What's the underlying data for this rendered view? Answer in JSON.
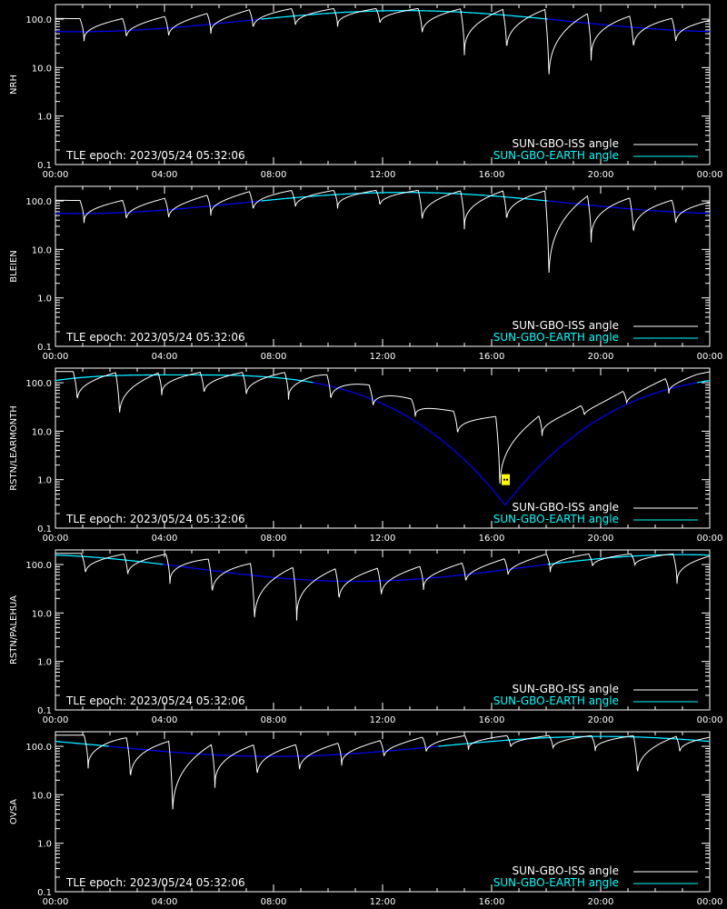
{
  "colors": {
    "background": "#000000",
    "axes": "#ffffff",
    "iss_curve": "#ffffff",
    "earth_curve_low": "#0000ff",
    "earth_curve_high": "#00ffff",
    "marker": "#ffff00"
  },
  "chart_data": [
    {
      "type": "line",
      "ylabel": "NRH",
      "xticks": [
        "00:00",
        "04:00",
        "08:00",
        "12:00",
        "16:00",
        "20:00",
        "00:00"
      ],
      "yticks": [
        "0.1",
        "1.0",
        "10.0",
        "100.0"
      ],
      "x_range_hours": [
        0,
        24
      ],
      "ylim": [
        0.1,
        200
      ],
      "yscale": "log",
      "annotation": "TLE epoch: 2023/05/24 05:32:06",
      "legend": [
        "SUN-GBO-ISS angle",
        "SUN-GBO-EARTH angle"
      ],
      "earth": {
        "mid_hour": 12.8,
        "max_angle": 150,
        "min_angle": 55
      },
      "iss_dips": [
        {
          "hour": 1.05,
          "angle": 35
        },
        {
          "hour": 2.6,
          "angle": 38
        },
        {
          "hour": 4.15,
          "angle": 40
        },
        {
          "hour": 5.7,
          "angle": 50
        },
        {
          "hour": 7.25,
          "angle": 60
        },
        {
          "hour": 8.8,
          "angle": 68
        },
        {
          "hour": 10.35,
          "angle": 70
        },
        {
          "hour": 11.9,
          "angle": 75
        },
        {
          "hour": 13.45,
          "angle": 45
        },
        {
          "hour": 15.0,
          "angle": 18
        },
        {
          "hour": 16.55,
          "angle": 20
        },
        {
          "hour": 18.1,
          "angle": 4.5
        },
        {
          "hour": 19.65,
          "angle": 14
        },
        {
          "hour": 21.2,
          "angle": 22
        },
        {
          "hour": 22.75,
          "angle": 30
        }
      ]
    },
    {
      "type": "line",
      "ylabel": "BLEIEN",
      "xticks": [
        "00:00",
        "04:00",
        "08:00",
        "12:00",
        "16:00",
        "20:00",
        "00:00"
      ],
      "yticks": [
        "0.1",
        "1.0",
        "10.0",
        "100.0"
      ],
      "x_range_hours": [
        0,
        24
      ],
      "ylim": [
        0.1,
        200
      ],
      "yscale": "log",
      "annotation": "TLE epoch: 2023/05/24 05:32:06",
      "legend": [
        "SUN-GBO-ISS angle",
        "SUN-GBO-EARTH angle"
      ],
      "earth": {
        "mid_hour": 12.8,
        "max_angle": 150,
        "min_angle": 55
      },
      "iss_dips": [
        {
          "hour": 1.05,
          "angle": 35
        },
        {
          "hour": 2.6,
          "angle": 38
        },
        {
          "hour": 4.15,
          "angle": 40
        },
        {
          "hour": 5.7,
          "angle": 50
        },
        {
          "hour": 7.25,
          "angle": 60
        },
        {
          "hour": 8.8,
          "angle": 68
        },
        {
          "hour": 10.35,
          "angle": 70
        },
        {
          "hour": 11.9,
          "angle": 75
        },
        {
          "hour": 13.45,
          "angle": 35
        },
        {
          "hour": 15.0,
          "angle": 26
        },
        {
          "hour": 16.55,
          "angle": 35
        },
        {
          "hour": 18.1,
          "angle": 1.8
        },
        {
          "hour": 19.65,
          "angle": 14
        },
        {
          "hour": 21.2,
          "angle": 18
        },
        {
          "hour": 22.75,
          "angle": 30
        }
      ]
    },
    {
      "type": "line",
      "ylabel": "RSTN/LEARMONTH",
      "xticks": [
        "00:00",
        "04:00",
        "08:00",
        "12:00",
        "16:00",
        "20:00",
        "00:00"
      ],
      "yticks": [
        "0.1",
        "1.0",
        "10.0",
        "100.0"
      ],
      "x_range_hours": [
        0,
        24
      ],
      "ylim": [
        0.1,
        200
      ],
      "yscale": "log",
      "annotation": "TLE epoch: 2023/05/24 05:32:06",
      "legend": [
        "SUN-GBO-ISS angle",
        "SUN-GBO-EARTH angle"
      ],
      "earth": {
        "mid_hour": 4.5,
        "max_angle": 145,
        "min_angle": 0.3,
        "min_hour": 16.5
      },
      "marker": {
        "hour": 16.5,
        "angle": 1.0
      },
      "iss_dips": [
        {
          "hour": 0.8,
          "angle": 38
        },
        {
          "hour": 2.35,
          "angle": 18
        },
        {
          "hour": 3.9,
          "angle": 55
        },
        {
          "hour": 5.45,
          "angle": 55
        },
        {
          "hour": 7.0,
          "angle": 50
        },
        {
          "hour": 8.55,
          "angle": 45
        },
        {
          "hour": 10.1,
          "angle": 40
        },
        {
          "hour": 11.65,
          "angle": 30
        },
        {
          "hour": 13.2,
          "angle": 20
        },
        {
          "hour": 14.75,
          "angle": 8
        },
        {
          "hour": 16.3,
          "angle": 0.5
        },
        {
          "hour": 17.85,
          "angle": 8
        },
        {
          "hour": 19.4,
          "angle": 20
        },
        {
          "hour": 20.95,
          "angle": 35
        },
        {
          "hour": 22.5,
          "angle": 60
        }
      ]
    },
    {
      "type": "line",
      "ylabel": "RSTN/PALEHUA",
      "xticks": [
        "00:00",
        "04:00",
        "08:00",
        "12:00",
        "16:00",
        "20:00",
        "00:00"
      ],
      "yticks": [
        "0.1",
        "1.0",
        "10.0",
        "100.0"
      ],
      "x_range_hours": [
        0,
        24
      ],
      "ylim": [
        0.1,
        200
      ],
      "yscale": "log",
      "annotation": "TLE epoch: 2023/05/24 05:32:06",
      "legend": [
        "SUN-GBO-ISS angle",
        "SUN-GBO-EARTH angle"
      ],
      "earth": {
        "mid_hour": 23.5,
        "max_angle": 160,
        "min_angle": 45,
        "min_hour": 11.0
      },
      "iss_dips": [
        {
          "hour": 1.1,
          "angle": 60
        },
        {
          "hour": 2.65,
          "angle": 55
        },
        {
          "hour": 4.2,
          "angle": 40
        },
        {
          "hour": 5.75,
          "angle": 22
        },
        {
          "hour": 7.3,
          "angle": 5.5
        },
        {
          "hour": 8.85,
          "angle": 7
        },
        {
          "hour": 10.4,
          "angle": 16
        },
        {
          "hour": 11.95,
          "angle": 20
        },
        {
          "hour": 13.5,
          "angle": 30
        },
        {
          "hour": 15.05,
          "angle": 40
        },
        {
          "hour": 16.6,
          "angle": 55
        },
        {
          "hour": 18.15,
          "angle": 70
        },
        {
          "hour": 19.7,
          "angle": 85
        },
        {
          "hour": 21.25,
          "angle": 90
        },
        {
          "hour": 22.8,
          "angle": 40
        }
      ]
    },
    {
      "type": "line",
      "ylabel": "OVSA",
      "xticks": [
        "00:00",
        "04:00",
        "08:00",
        "12:00",
        "16:00",
        "20:00",
        "00:00"
      ],
      "yticks": [
        "0.1",
        "1.0",
        "10.0",
        "100.0"
      ],
      "x_range_hours": [
        0,
        24
      ],
      "ylim": [
        0.1,
        200
      ],
      "yscale": "log",
      "annotation": "TLE epoch: 2023/05/24 05:32:06",
      "legend": [
        "SUN-GBO-ISS angle",
        "SUN-GBO-EARTH angle"
      ],
      "earth": {
        "mid_hour": 20.0,
        "max_angle": 160,
        "min_angle": 62,
        "min_hour": 8.0
      },
      "iss_dips": [
        {
          "hour": 1.2,
          "angle": 35
        },
        {
          "hour": 2.75,
          "angle": 18
        },
        {
          "hour": 4.3,
          "angle": 3
        },
        {
          "hour": 5.85,
          "angle": 14
        },
        {
          "hour": 7.4,
          "angle": 22
        },
        {
          "hour": 8.95,
          "angle": 28
        },
        {
          "hour": 10.5,
          "angle": 40
        },
        {
          "hour": 12.05,
          "angle": 55
        },
        {
          "hour": 13.6,
          "angle": 70
        },
        {
          "hour": 15.15,
          "angle": 85
        },
        {
          "hour": 16.7,
          "angle": 90
        },
        {
          "hour": 18.25,
          "angle": 85
        },
        {
          "hour": 19.8,
          "angle": 80
        },
        {
          "hour": 21.35,
          "angle": 22
        },
        {
          "hour": 22.9,
          "angle": 70
        }
      ]
    }
  ]
}
